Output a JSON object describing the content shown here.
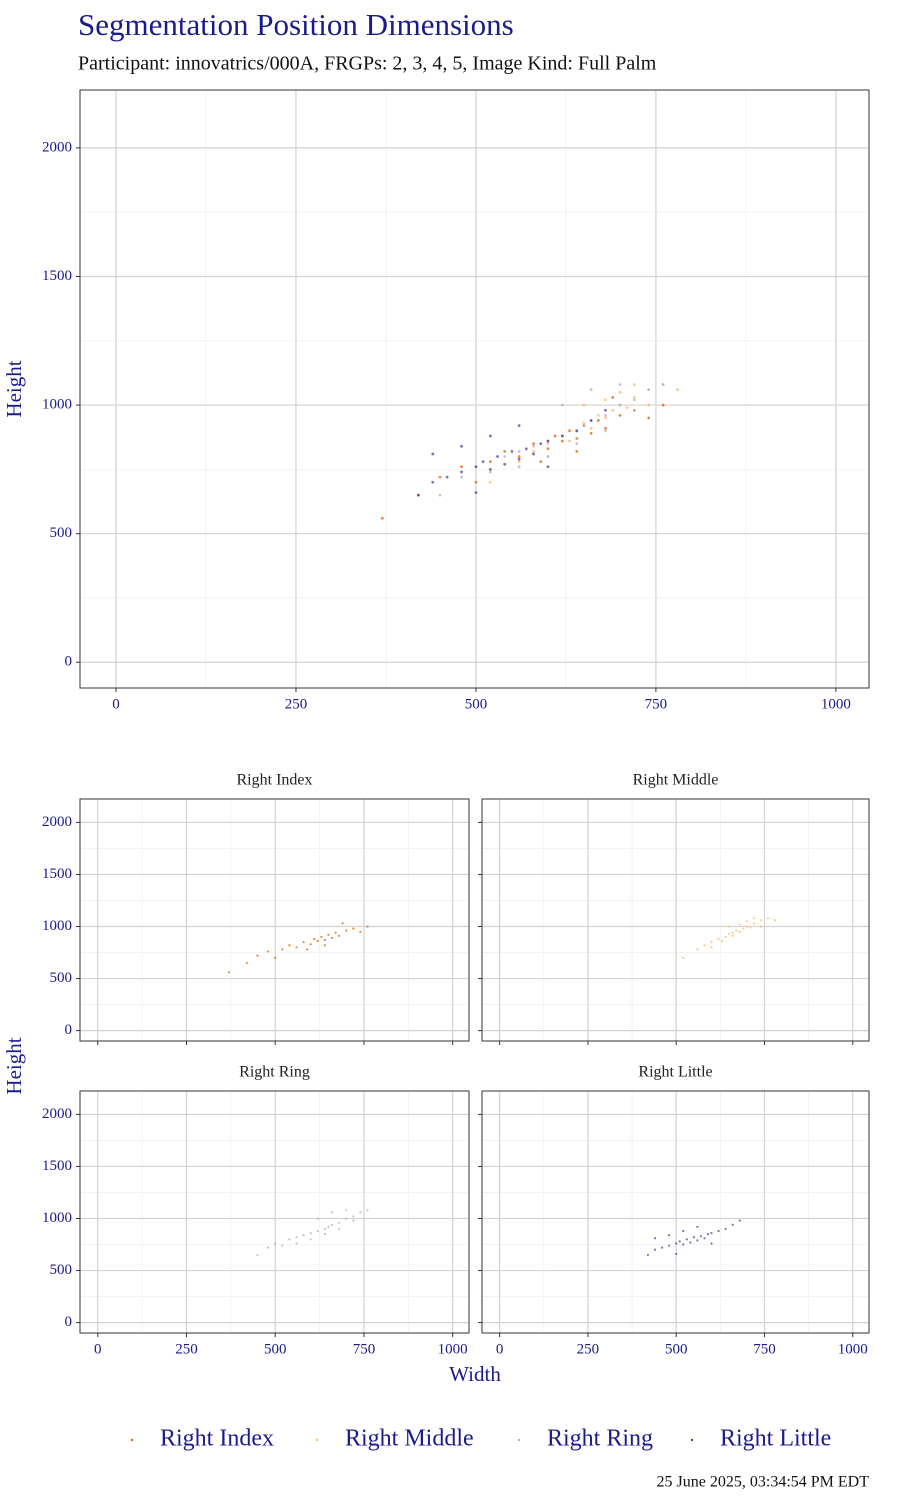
{
  "chart_data": {
    "type": "scatter",
    "title": "Segmentation Position Dimensions",
    "subtitle": "Participant: innovatrics/000A, FRGPs: 2, 3, 4, 5, Image Kind: Full Palm",
    "x_label": "Width",
    "y_label": "Height",
    "caption": "25 June 2025, 03:34:54 PM EDT",
    "xlim": [
      -50,
      1046
    ],
    "ylim": [
      -100,
      2225
    ],
    "xticks": [
      0,
      250,
      500,
      750,
      1000
    ],
    "yticks": [
      0,
      500,
      1000,
      1500,
      2000
    ],
    "grid": true,
    "minor_grid": true,
    "legend": "bottom",
    "series": [
      {
        "name": "Right Index",
        "color": "#e66101",
        "x": [
          450,
          480,
          520,
          540,
          560,
          580,
          600,
          610,
          620,
          630,
          640,
          650,
          660,
          670,
          680,
          700,
          720,
          740,
          760,
          420,
          500,
          590,
          640,
          690,
          370
        ],
        "values": [
          720,
          760,
          780,
          820,
          800,
          850,
          830,
          880,
          860,
          900,
          870,
          920,
          890,
          940,
          910,
          960,
          980,
          950,
          1000,
          650,
          700,
          780,
          820,
          1030,
          560
        ]
      },
      {
        "name": "Right Middle",
        "color": "#fdb863",
        "x": [
          560,
          580,
          600,
          620,
          640,
          650,
          660,
          670,
          680,
          690,
          700,
          710,
          720,
          740,
          760,
          600,
          630,
          660,
          700,
          520,
          780,
          650,
          680,
          720,
          740
        ],
        "values": [
          780,
          820,
          850,
          880,
          900,
          930,
          910,
          960,
          950,
          980,
          1000,
          990,
          1030,
          1060,
          1080,
          800,
          860,
          940,
          1050,
          700,
          1060,
          1000,
          1020,
          1080,
          1000
        ]
      },
      {
        "name": "Right Ring",
        "color": "#b2abd2",
        "x": [
          480,
          500,
          520,
          540,
          560,
          580,
          600,
          620,
          640,
          650,
          660,
          680,
          700,
          720,
          740,
          560,
          600,
          640,
          680,
          720,
          450,
          760,
          620,
          660,
          700
        ],
        "values": [
          720,
          760,
          740,
          800,
          820,
          840,
          860,
          880,
          900,
          920,
          940,
          960,
          1000,
          1020,
          1060,
          760,
          800,
          850,
          900,
          980,
          650,
          1080,
          1000,
          1060,
          1080
        ]
      },
      {
        "name": "Right Little",
        "color": "#5e3c99",
        "x": [
          420,
          440,
          460,
          480,
          500,
          510,
          520,
          530,
          540,
          550,
          560,
          570,
          580,
          590,
          600,
          620,
          640,
          660,
          480,
          520,
          560,
          600,
          500,
          680,
          440
        ],
        "values": [
          650,
          700,
          720,
          740,
          760,
          780,
          750,
          800,
          770,
          820,
          790,
          830,
          810,
          850,
          860,
          880,
          900,
          940,
          840,
          880,
          920,
          760,
          660,
          980,
          810
        ]
      }
    ]
  }
}
